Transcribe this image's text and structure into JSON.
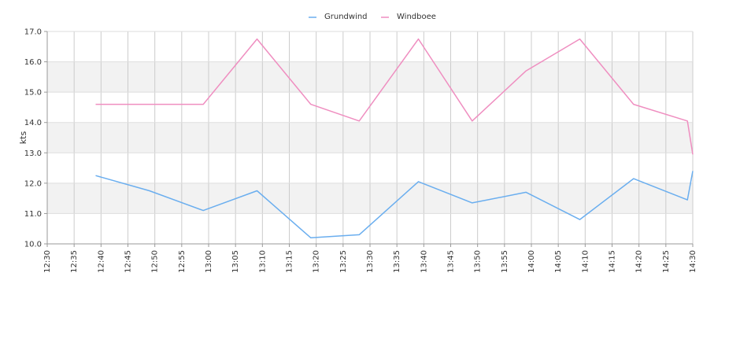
{
  "chart_data": {
    "type": "line",
    "title": "",
    "xlabel": "",
    "ylabel": "kts",
    "ylim": [
      10.0,
      17.0
    ],
    "yticks": [
      "10.0",
      "11.0",
      "12.0",
      "13.0",
      "14.0",
      "15.0",
      "16.0",
      "17.0"
    ],
    "xticks": [
      "12:30",
      "12:35",
      "12:40",
      "12:45",
      "12:50",
      "12:55",
      "13:00",
      "13:05",
      "13:10",
      "13:15",
      "13:20",
      "13:25",
      "13:30",
      "13:35",
      "13:40",
      "13:45",
      "13:50",
      "13:55",
      "14:00",
      "14:05",
      "14:10",
      "14:15",
      "14:20",
      "14:25",
      "14:30"
    ],
    "xlim": [
      "12:30",
      "14:30"
    ],
    "grid": true,
    "alternating_bands": true,
    "legend_position": "top-center",
    "series": [
      {
        "name": "Grundwind",
        "color": "#6aaeef",
        "points": [
          [
            "12:39",
            12.25
          ],
          [
            "12:49",
            11.75
          ],
          [
            "12:59",
            11.1
          ],
          [
            "13:09",
            11.75
          ],
          [
            "13:19",
            10.2
          ],
          [
            "13:28",
            10.3
          ],
          [
            "13:39",
            12.05
          ],
          [
            "13:49",
            11.35
          ],
          [
            "13:59",
            11.7
          ],
          [
            "14:09",
            10.8
          ],
          [
            "14:19",
            12.15
          ],
          [
            "14:29",
            11.45
          ],
          [
            "14:30",
            12.4
          ]
        ]
      },
      {
        "name": "Windboee",
        "color": "#ef8ec0",
        "points": [
          [
            "12:39",
            14.6
          ],
          [
            "12:49",
            14.6
          ],
          [
            "12:59",
            14.6
          ],
          [
            "13:09",
            16.75
          ],
          [
            "13:19",
            14.6
          ],
          [
            "13:28",
            14.05
          ],
          [
            "13:39",
            16.75
          ],
          [
            "13:49",
            14.05
          ],
          [
            "13:59",
            15.7
          ],
          [
            "14:09",
            16.75
          ],
          [
            "14:19",
            14.6
          ],
          [
            "14:29",
            14.05
          ],
          [
            "14:30",
            12.95
          ]
        ]
      }
    ]
  }
}
